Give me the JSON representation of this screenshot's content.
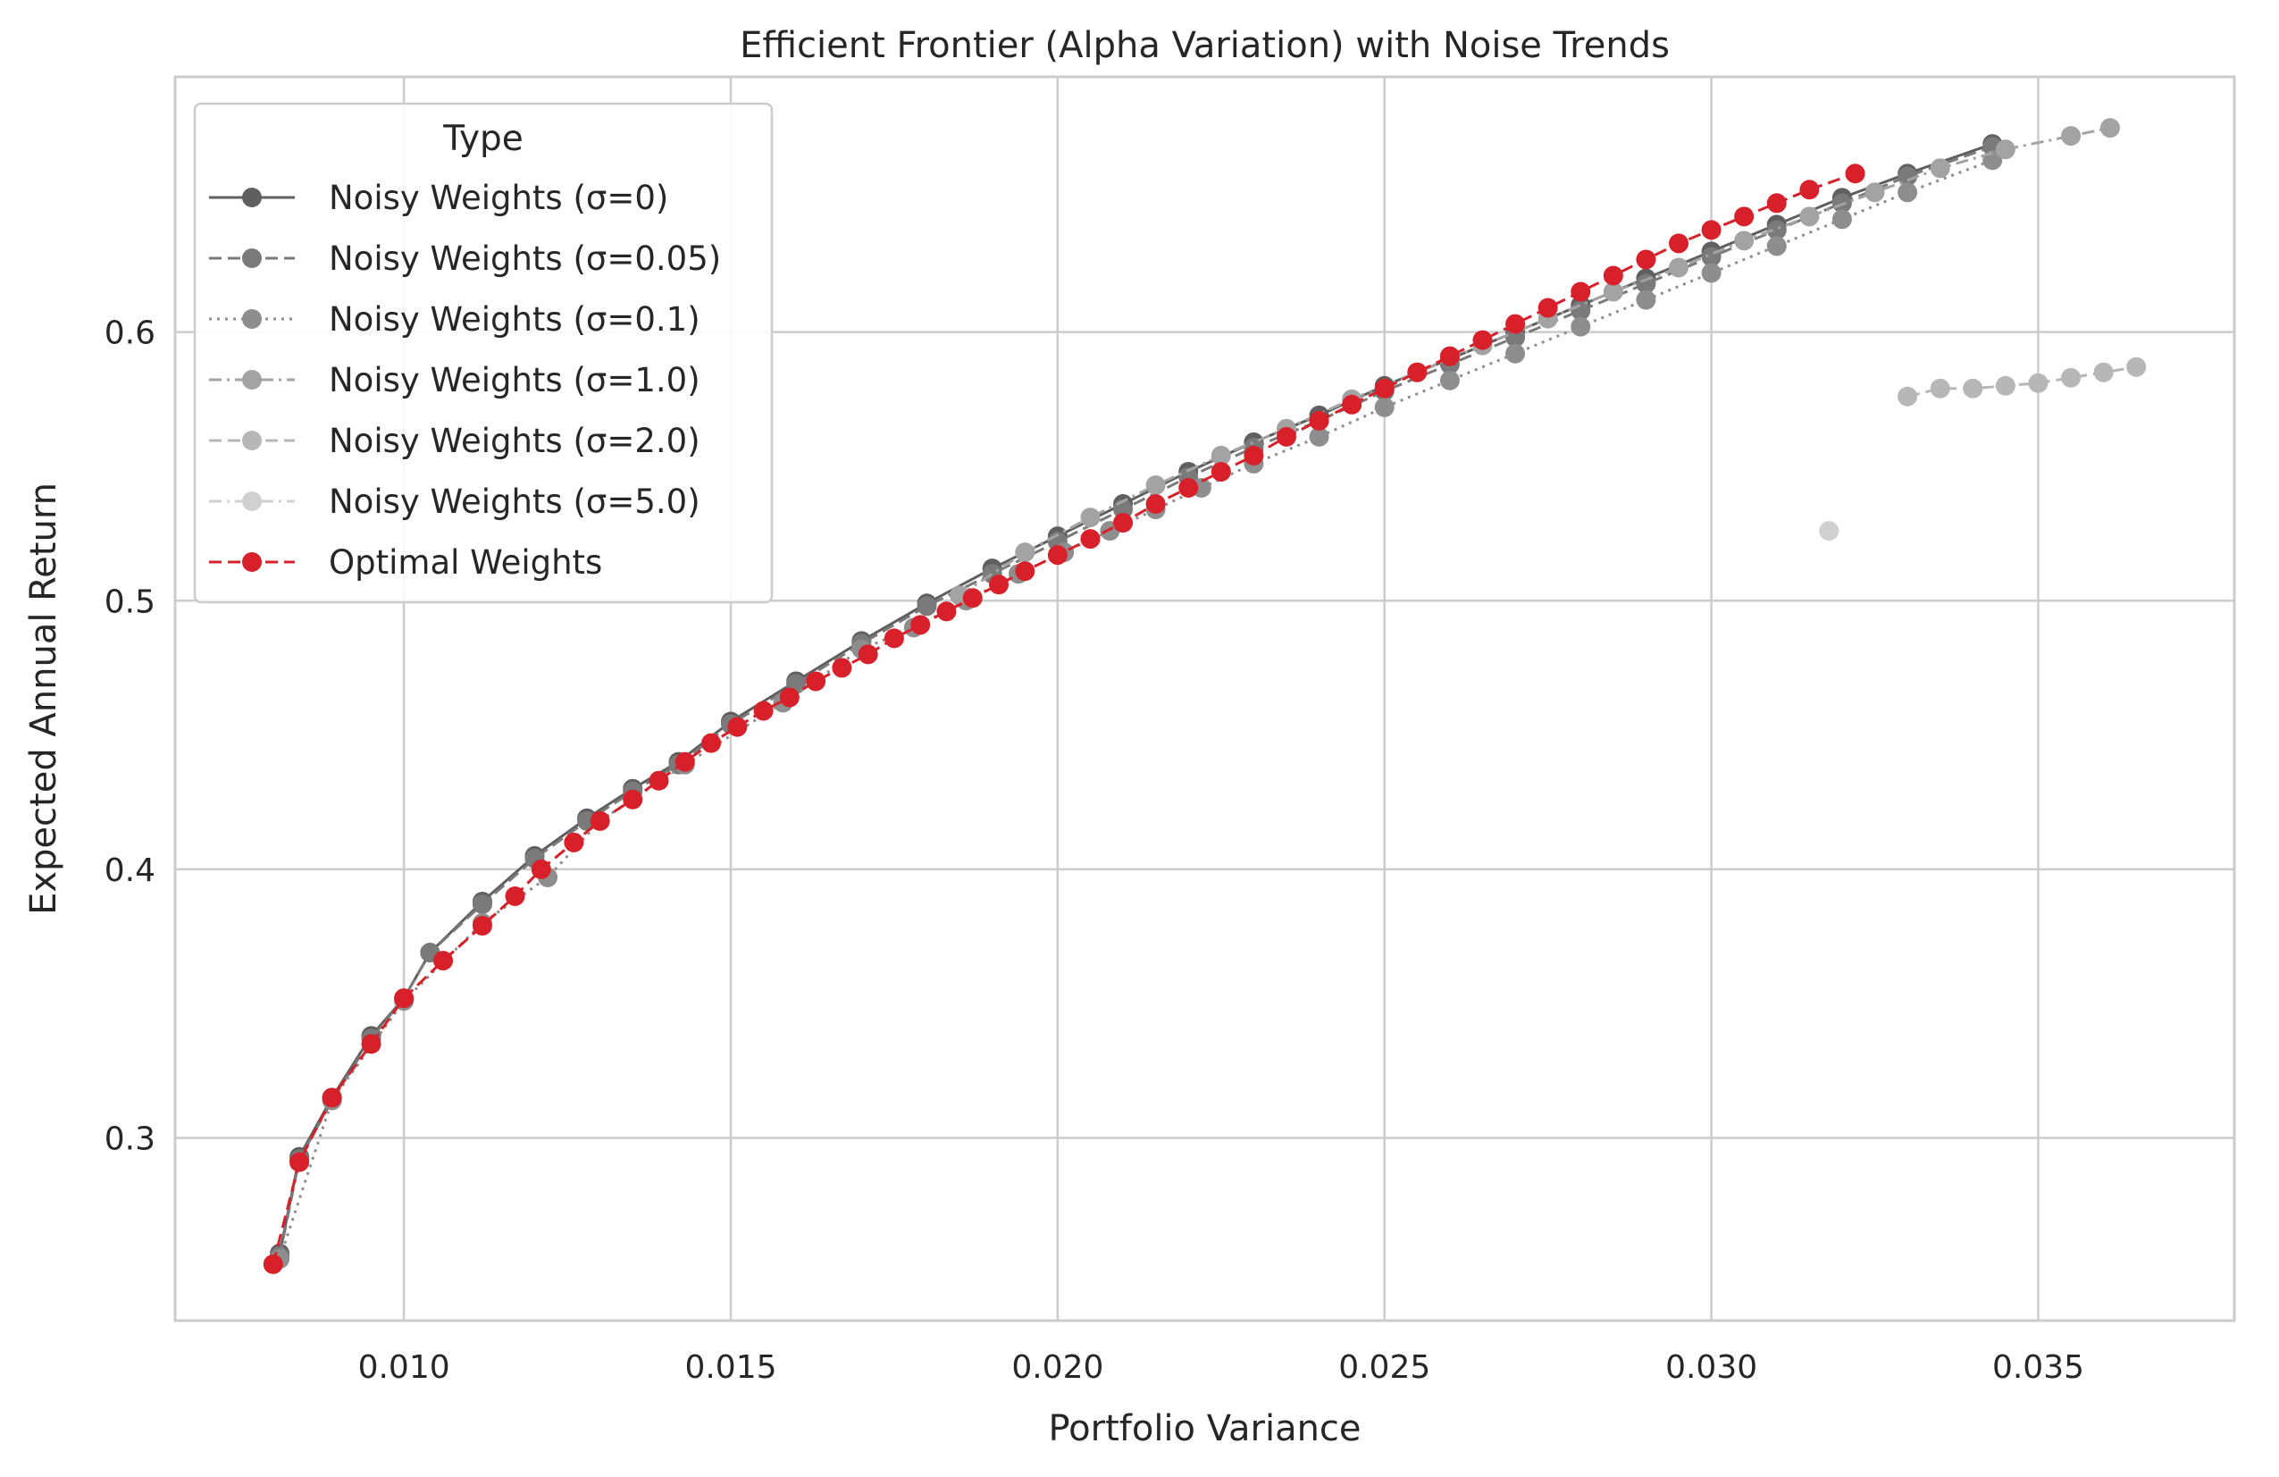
{
  "chart_data": {
    "type": "line",
    "title": "Efficient Frontier (Alpha Variation) with Noise Trends",
    "xlabel": "Portfolio Variance",
    "ylabel": "Expected Annual Return",
    "xlim": [
      0.0065,
      0.038
    ],
    "ylim": [
      0.232,
      0.695
    ],
    "xticks": [
      {
        "value": 0.01,
        "label": "0.010"
      },
      {
        "value": 0.015,
        "label": "0.015"
      },
      {
        "value": 0.02,
        "label": "0.020"
      },
      {
        "value": 0.025,
        "label": "0.025"
      },
      {
        "value": 0.03,
        "label": "0.030"
      },
      {
        "value": 0.035,
        "label": "0.035"
      }
    ],
    "yticks": [
      {
        "value": 0.3,
        "label": "0.3"
      },
      {
        "value": 0.4,
        "label": "0.4"
      },
      {
        "value": 0.5,
        "label": "0.5"
      },
      {
        "value": 0.6,
        "label": "0.6"
      }
    ],
    "grid": true,
    "legend": {
      "title": "Type",
      "placement": "upper-left"
    },
    "series": [
      {
        "name": "Noisy Weights (σ=0)",
        "color": "#5f5f5f",
        "linestyle": "solid",
        "x": [
          0.0081,
          0.0084,
          0.0089,
          0.0095,
          0.01,
          0.0104,
          0.0112,
          0.012,
          0.0128,
          0.0135,
          0.0142,
          0.015,
          0.016,
          0.017,
          0.018,
          0.019,
          0.02,
          0.021,
          0.022,
          0.023,
          0.024,
          0.025,
          0.026,
          0.027,
          0.028,
          0.029,
          0.03,
          0.031,
          0.032,
          0.033,
          0.0343
        ],
        "y": [
          0.257,
          0.293,
          0.315,
          0.338,
          0.352,
          0.369,
          0.388,
          0.405,
          0.419,
          0.43,
          0.44,
          0.455,
          0.47,
          0.485,
          0.499,
          0.512,
          0.524,
          0.536,
          0.548,
          0.559,
          0.569,
          0.58,
          0.59,
          0.6,
          0.61,
          0.62,
          0.63,
          0.64,
          0.65,
          0.659,
          0.67
        ]
      },
      {
        "name": "Noisy Weights (σ=0.05)",
        "color": "#7a7a7a",
        "linestyle": "dashed",
        "x": [
          0.0081,
          0.0084,
          0.0089,
          0.0095,
          0.01,
          0.0104,
          0.0112,
          0.012,
          0.0128,
          0.0135,
          0.0142,
          0.015,
          0.016,
          0.017,
          0.018,
          0.019,
          0.02,
          0.021,
          0.022,
          0.023,
          0.024,
          0.025,
          0.026,
          0.027,
          0.028,
          0.029,
          0.03,
          0.031,
          0.032,
          0.033,
          0.0343
        ],
        "y": [
          0.256,
          0.292,
          0.314,
          0.337,
          0.352,
          0.369,
          0.387,
          0.404,
          0.418,
          0.429,
          0.439,
          0.454,
          0.469,
          0.484,
          0.498,
          0.51,
          0.522,
          0.534,
          0.546,
          0.557,
          0.567,
          0.578,
          0.588,
          0.598,
          0.608,
          0.618,
          0.628,
          0.638,
          0.648,
          0.658,
          0.669
        ]
      },
      {
        "name": "Noisy Weights (σ=0.1)",
        "color": "#8e8e8e",
        "linestyle": "dotted",
        "x": [
          0.0081,
          0.0089,
          0.01,
          0.0112,
          0.0122,
          0.013,
          0.0143,
          0.0158,
          0.017,
          0.0178,
          0.0186,
          0.0194,
          0.0201,
          0.0208,
          0.0215,
          0.0222,
          0.023,
          0.024,
          0.025,
          0.026,
          0.027,
          0.028,
          0.029,
          0.03,
          0.031,
          0.032,
          0.033,
          0.0343
        ],
        "y": [
          0.255,
          0.314,
          0.351,
          0.38,
          0.397,
          0.418,
          0.439,
          0.462,
          0.482,
          0.49,
          0.5,
          0.51,
          0.518,
          0.526,
          0.534,
          0.542,
          0.551,
          0.561,
          0.572,
          0.582,
          0.592,
          0.602,
          0.612,
          0.622,
          0.632,
          0.642,
          0.652,
          0.664
        ]
      },
      {
        "name": "Noisy Weights (σ=1.0)",
        "color": "#a3a3a3",
        "linestyle": "dashdot",
        "x": [
          0.0185,
          0.0195,
          0.0205,
          0.0215,
          0.0225,
          0.0235,
          0.0245,
          0.0255,
          0.0265,
          0.0275,
          0.0285,
          0.0295,
          0.0305,
          0.0315,
          0.0325,
          0.0335,
          0.0345,
          0.0355,
          0.0361
        ],
        "y": [
          0.502,
          0.518,
          0.531,
          0.543,
          0.554,
          0.564,
          0.575,
          0.585,
          0.595,
          0.605,
          0.615,
          0.624,
          0.634,
          0.643,
          0.652,
          0.661,
          0.668,
          0.673,
          0.676
        ]
      },
      {
        "name": "Noisy Weights (σ=2.0)",
        "color": "#b7b7b7",
        "linestyle": "dashed",
        "x": [
          0.033,
          0.0335,
          0.034,
          0.0345,
          0.035,
          0.0355,
          0.036,
          0.0365
        ],
        "y": [
          0.576,
          0.579,
          0.579,
          0.58,
          0.581,
          0.583,
          0.585,
          0.587
        ]
      },
      {
        "name": "Noisy Weights (σ=5.0)",
        "color": "#d0d0d0",
        "linestyle": "dashdot",
        "x": [
          0.0318
        ],
        "y": [
          0.526
        ]
      },
      {
        "name": "Optimal Weights",
        "color": "#d7202a",
        "linestyle": "dashed",
        "x": [
          0.008,
          0.0084,
          0.0089,
          0.0095,
          0.01,
          0.0106,
          0.0112,
          0.0117,
          0.0121,
          0.0126,
          0.013,
          0.0135,
          0.0139,
          0.0143,
          0.0147,
          0.0151,
          0.0155,
          0.0159,
          0.0163,
          0.0167,
          0.0171,
          0.0175,
          0.0179,
          0.0183,
          0.0187,
          0.0191,
          0.0195,
          0.02,
          0.0205,
          0.021,
          0.0215,
          0.022,
          0.0225,
          0.023,
          0.0235,
          0.024,
          0.0245,
          0.025,
          0.0255,
          0.026,
          0.0265,
          0.027,
          0.0275,
          0.028,
          0.0285,
          0.029,
          0.0295,
          0.03,
          0.0305,
          0.031,
          0.0315,
          0.0322
        ],
        "y": [
          0.253,
          0.291,
          0.315,
          0.335,
          0.352,
          0.366,
          0.379,
          0.39,
          0.4,
          0.41,
          0.418,
          0.426,
          0.433,
          0.44,
          0.447,
          0.453,
          0.459,
          0.464,
          0.47,
          0.475,
          0.48,
          0.486,
          0.491,
          0.496,
          0.501,
          0.506,
          0.511,
          0.517,
          0.523,
          0.529,
          0.536,
          0.542,
          0.548,
          0.554,
          0.561,
          0.567,
          0.573,
          0.579,
          0.585,
          0.591,
          0.597,
          0.603,
          0.609,
          0.615,
          0.621,
          0.627,
          0.633,
          0.638,
          0.643,
          0.648,
          0.653,
          0.659
        ]
      }
    ]
  }
}
